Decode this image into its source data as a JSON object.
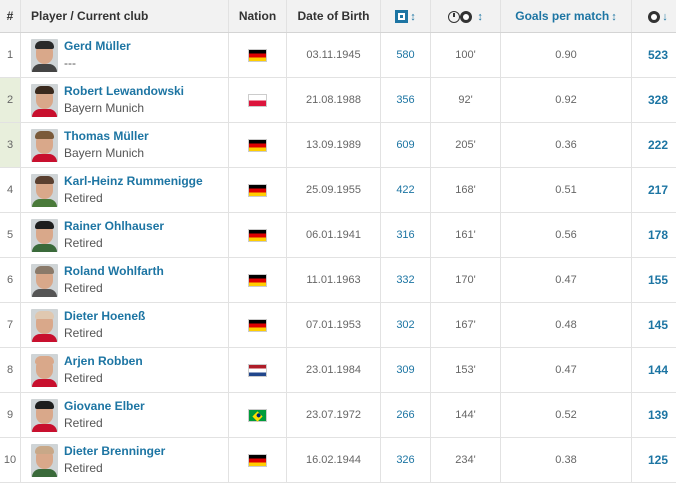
{
  "headers": {
    "rank": "#",
    "player": "Player / Current club",
    "nation": "Nation",
    "dob": "Date of Birth",
    "apps_icon": "appearances-icon",
    "apps_sort": "↕",
    "mins_icon": "minutes-clock-ball-icon",
    "mins_sort": "↕",
    "gpm": "Goals per match",
    "gpm_sort": "↕",
    "goals_icon": "goals-ball-icon",
    "goals_sort": "↓"
  },
  "colors": {
    "link": "#1d75a3",
    "header_bg": "#f2f2f2",
    "rank_highlight": "#e8efdc"
  },
  "rows": [
    {
      "rank": "1",
      "name": "Gerd Müller",
      "club": "---",
      "nation": "germany",
      "dob": "03.11.1945",
      "apps": "580",
      "mins": "100'",
      "gpm": "0.90",
      "goals": "523",
      "highlight": false,
      "hair": "#2a2a2a",
      "body": "#444"
    },
    {
      "rank": "2",
      "name": "Robert Lewandowski",
      "club": "Bayern Munich",
      "nation": "poland",
      "dob": "21.08.1988",
      "apps": "356",
      "mins": "92'",
      "gpm": "0.92",
      "goals": "328",
      "highlight": true,
      "hair": "#3a2a1e",
      "body": "#c8102e"
    },
    {
      "rank": "3",
      "name": "Thomas Müller",
      "club": "Bayern Munich",
      "nation": "germany",
      "dob": "13.09.1989",
      "apps": "609",
      "mins": "205'",
      "gpm": "0.36",
      "goals": "222",
      "highlight": true,
      "hair": "#7a5a3a",
      "body": "#c8102e"
    },
    {
      "rank": "4",
      "name": "Karl-Heinz Rummenigge",
      "club": "Retired",
      "nation": "germany",
      "dob": "25.09.1955",
      "apps": "422",
      "mins": "168'",
      "gpm": "0.51",
      "goals": "217",
      "highlight": false,
      "hair": "#5a4030",
      "body": "#4a7a3a"
    },
    {
      "rank": "5",
      "name": "Rainer Ohlhauser",
      "club": "Retired",
      "nation": "germany",
      "dob": "06.01.1941",
      "apps": "316",
      "mins": "161'",
      "gpm": "0.56",
      "goals": "178",
      "highlight": false,
      "hair": "#1e1e1e",
      "body": "#3a6a3a"
    },
    {
      "rank": "6",
      "name": "Roland Wohlfarth",
      "club": "Retired",
      "nation": "germany",
      "dob": "11.01.1963",
      "apps": "332",
      "mins": "170'",
      "gpm": "0.47",
      "goals": "155",
      "highlight": false,
      "hair": "#8a7a6a",
      "body": "#555"
    },
    {
      "rank": "7",
      "name": "Dieter Hoeneß",
      "club": "Retired",
      "nation": "germany",
      "dob": "07.01.1953",
      "apps": "302",
      "mins": "167'",
      "gpm": "0.48",
      "goals": "145",
      "highlight": false,
      "hair": "#e0c8b0",
      "body": "#c8102e"
    },
    {
      "rank": "8",
      "name": "Arjen Robben",
      "club": "Retired",
      "nation": "netherlands",
      "dob": "23.01.1984",
      "apps": "309",
      "mins": "153'",
      "gpm": "0.47",
      "goals": "144",
      "highlight": false,
      "hair": "#d9a88a",
      "body": "#c8102e"
    },
    {
      "rank": "9",
      "name": "Giovane Elber",
      "club": "Retired",
      "nation": "brazil",
      "dob": "23.07.1972",
      "apps": "266",
      "mins": "144'",
      "gpm": "0.52",
      "goals": "139",
      "highlight": false,
      "hair": "#1e1e1e",
      "body": "#c8102e"
    },
    {
      "rank": "10",
      "name": "Dieter Brenninger",
      "club": "Retired",
      "nation": "germany",
      "dob": "16.02.1944",
      "apps": "326",
      "mins": "234'",
      "gpm": "0.38",
      "goals": "125",
      "highlight": false,
      "hair": "#c8a888",
      "body": "#3a6a3a"
    }
  ]
}
